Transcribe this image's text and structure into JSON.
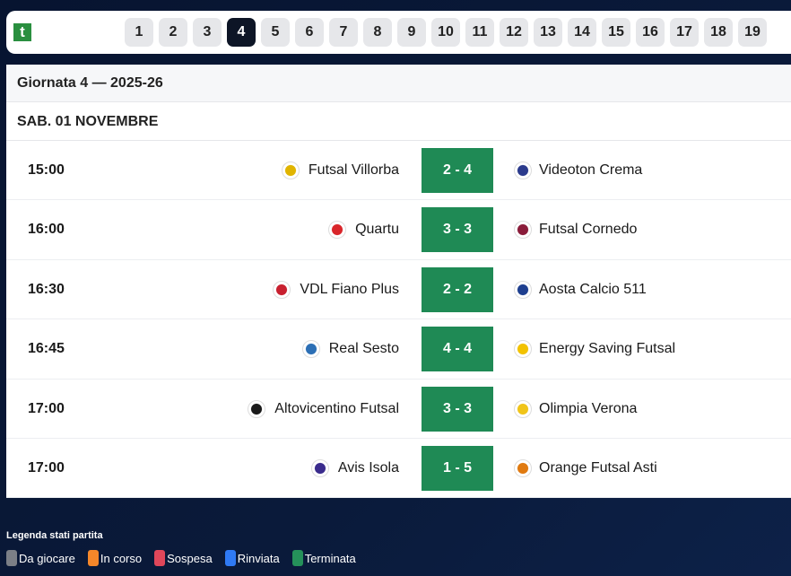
{
  "pages": [
    "1",
    "2",
    "3",
    "4",
    "5",
    "6",
    "7",
    "8",
    "9",
    "10",
    "11",
    "12",
    "13",
    "14",
    "15",
    "16",
    "17",
    "18",
    "19"
  ],
  "active_page": "4",
  "logo_text": "t",
  "header": {
    "title": "Giornata 4 — 2025-26"
  },
  "date": "SAB. 01 NOVEMBRE",
  "matches": [
    {
      "time": "15:00",
      "home": "Futsal Villorba",
      "score": "2 - 4",
      "away": "Videoton Crema",
      "home_color": "#e0b400",
      "away_color": "#2b3a8c"
    },
    {
      "time": "16:00",
      "home": "Quartu",
      "score": "3 - 3",
      "away": "Futsal Cornedo",
      "home_color": "#d9252a",
      "away_color": "#8a1c3a"
    },
    {
      "time": "16:30",
      "home": "VDL Fiano Plus",
      "score": "2 - 2",
      "away": "Aosta Calcio 511",
      "home_color": "#c8202f",
      "away_color": "#1e3f8f"
    },
    {
      "time": "16:45",
      "home": "Real Sesto",
      "score": "4 - 4",
      "away": "Energy Saving Futsal",
      "home_color": "#2c6fb5",
      "away_color": "#f2c200"
    },
    {
      "time": "17:00",
      "home": "Altovicentino Futsal",
      "score": "3 - 3",
      "away": "Olimpia Verona",
      "home_color": "#1a1a1a",
      "away_color": "#f0c419"
    },
    {
      "time": "17:00",
      "home": "Avis Isola",
      "score": "1 - 5",
      "away": "Orange Futsal Asti",
      "home_color": "#3a2b8c",
      "away_color": "#e07a10"
    }
  ],
  "legend": {
    "title": "Legenda stati partita",
    "items": [
      {
        "label": "Da giocare",
        "color": "#7b7f86"
      },
      {
        "label": "In corso",
        "color": "#f5872a"
      },
      {
        "label": "Sospesa",
        "color": "#e0475a"
      },
      {
        "label": "Rinviata",
        "color": "#2f7af5"
      },
      {
        "label": "Terminata",
        "color": "#25915a"
      }
    ]
  },
  "colors": {
    "score_bg": "#1f8a55",
    "active_page_bg": "#0d1526"
  }
}
